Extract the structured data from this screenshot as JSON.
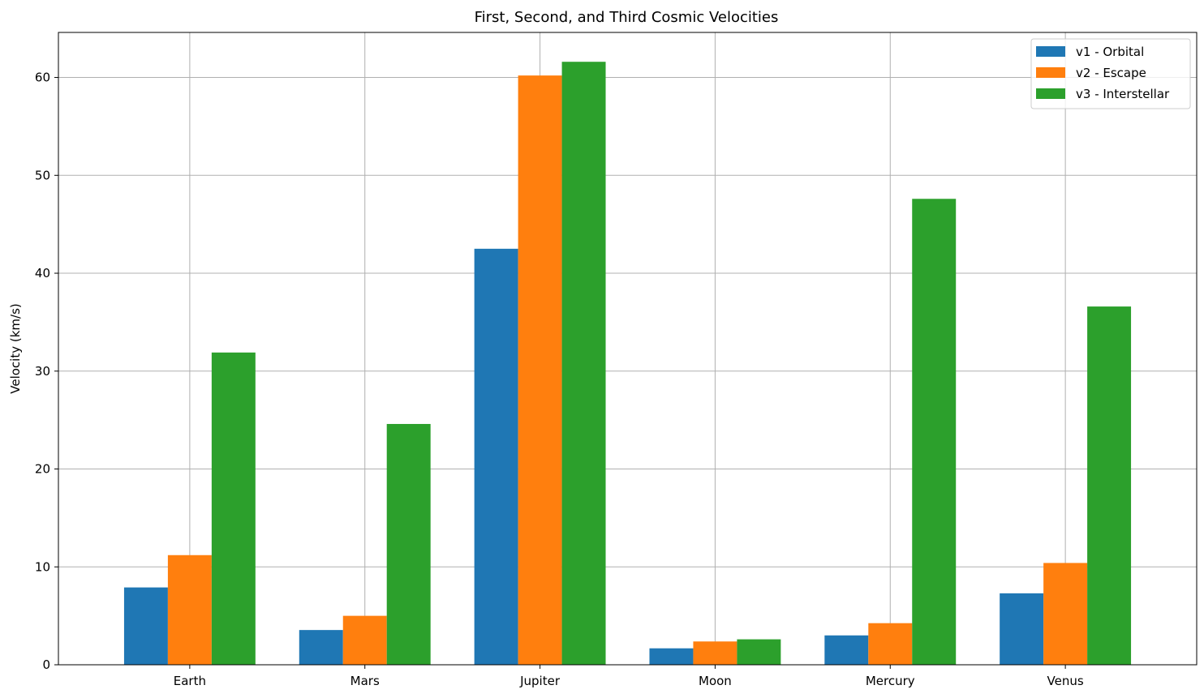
{
  "chart_data": {
    "type": "bar",
    "title": "First, Second, and Third Cosmic Velocities",
    "xlabel": "",
    "ylabel": "Velocity (km/s)",
    "categories": [
      "Earth",
      "Mars",
      "Jupiter",
      "Moon",
      "Mercury",
      "Venus"
    ],
    "series": [
      {
        "name": "v1 - Orbital",
        "color": "#1f77b4",
        "values": [
          7.9,
          3.55,
          42.5,
          1.68,
          3.0,
          7.3
        ]
      },
      {
        "name": "v2 - Escape",
        "color": "#ff7f0e",
        "values": [
          11.2,
          5.0,
          60.2,
          2.38,
          4.25,
          10.4
        ]
      },
      {
        "name": "v3 - Interstellar",
        "color": "#2ca02c",
        "values": [
          31.9,
          24.6,
          61.6,
          2.6,
          47.6,
          36.6
        ]
      }
    ],
    "ylim": [
      0,
      64.6
    ],
    "yticks": [
      0,
      10,
      20,
      30,
      40,
      50,
      60
    ],
    "grid": true,
    "legend_position": "top-right"
  }
}
